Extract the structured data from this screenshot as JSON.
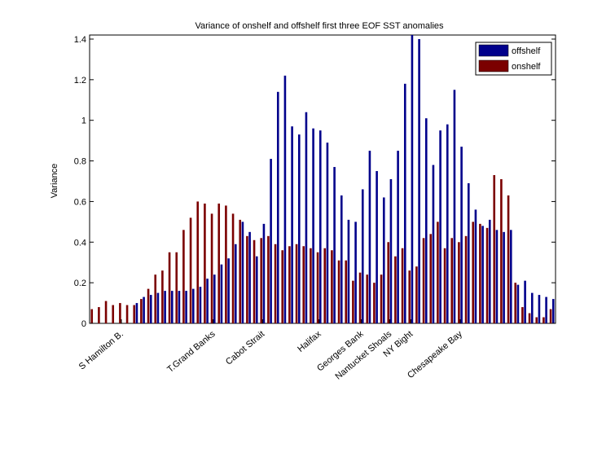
{
  "chart_data": {
    "type": "bar",
    "title": "Variance of onshelf and offshelf first three EOF SST anomalies",
    "xlabel": "",
    "ylabel": "Variance",
    "ylim": [
      0,
      1.42
    ],
    "yticks": [
      0,
      0.2,
      0.4,
      0.6,
      0.8,
      1,
      1.2,
      1.4
    ],
    "ytick_labels": [
      "0",
      "0.2",
      "0.4",
      "0.6",
      "0.8",
      "1",
      "1.2",
      "1.4"
    ],
    "x_tick_labels": [
      {
        "label": "S Hamilton B.",
        "index": 4
      },
      {
        "label": "T.Grand Banks",
        "index": 17
      },
      {
        "label": "Cabot Strait",
        "index": 24
      },
      {
        "label": "Halifax",
        "index": 32
      },
      {
        "label": "Georges Bank",
        "index": 38
      },
      {
        "label": "Nantucket Shoals",
        "index": 42
      },
      {
        "label": "NY Bight",
        "index": 45
      },
      {
        "label": "Chesapeake Bay",
        "index": 52
      }
    ],
    "legend_position": "top-right",
    "series": [
      {
        "name": "offshelf",
        "color": "#00008B",
        "values": [
          0.0,
          0.0,
          0.0,
          0.0,
          0.0,
          0.0,
          0.1,
          0.13,
          0.14,
          0.15,
          0.16,
          0.16,
          0.16,
          0.16,
          0.17,
          0.18,
          0.22,
          0.24,
          0.29,
          0.32,
          0.39,
          0.5,
          0.45,
          0.33,
          0.49,
          0.81,
          1.14,
          1.22,
          0.97,
          0.93,
          1.04,
          0.96,
          0.95,
          0.89,
          0.77,
          0.63,
          0.51,
          0.5,
          0.66,
          0.85,
          0.75,
          0.62,
          0.71,
          0.85,
          1.18,
          1.43,
          1.4,
          1.01,
          0.78,
          0.95,
          0.98,
          1.15,
          0.87,
          0.69,
          0.56,
          0.48,
          0.51,
          0.46,
          0.45,
          0.46,
          0.19,
          0.21,
          0.15,
          0.14,
          0.13,
          0.12
        ]
      },
      {
        "name": "onshelf",
        "color": "#7B0000",
        "values": [
          0.07,
          0.08,
          0.11,
          0.09,
          0.1,
          0.09,
          0.09,
          0.12,
          0.17,
          0.24,
          0.26,
          0.35,
          0.35,
          0.46,
          0.52,
          0.6,
          0.59,
          0.54,
          0.59,
          0.58,
          0.54,
          0.51,
          0.43,
          0.41,
          0.42,
          0.43,
          0.39,
          0.36,
          0.38,
          0.39,
          0.38,
          0.37,
          0.35,
          0.37,
          0.36,
          0.31,
          0.31,
          0.21,
          0.25,
          0.24,
          0.2,
          0.24,
          0.4,
          0.33,
          0.37,
          0.26,
          0.28,
          0.42,
          0.44,
          0.5,
          0.37,
          0.42,
          0.4,
          0.43,
          0.5,
          0.49,
          0.47,
          0.73,
          0.71,
          0.63,
          0.2,
          0.08,
          0.05,
          0.03,
          0.03,
          0.07
        ]
      }
    ],
    "grid": false
  }
}
